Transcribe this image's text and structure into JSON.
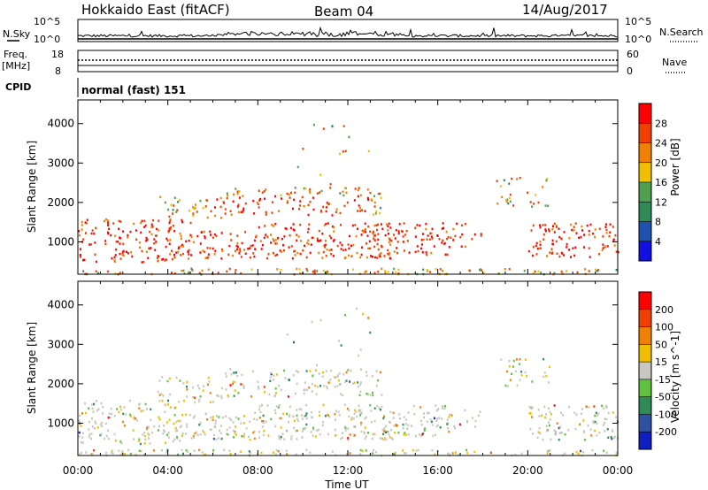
{
  "header": {
    "station": "Hokkaido East (fitACF)",
    "beam": "Beam 04",
    "date": "14/Aug/2017"
  },
  "status_panels": {
    "nsky_label": "N.Sky",
    "nsearch_label": "N.Search",
    "freq_label_line1": "Freq.",
    "freq_label_line2": "[MHz]",
    "nave_label": "Nave",
    "cpid_label": "CPID",
    "cpid_value": "normal (fast) 151",
    "nsky_ticks": [
      "10^5",
      "10^0"
    ],
    "nsearch_ticks": [
      "10^5",
      "10^0"
    ],
    "freq_ticks": [
      "18",
      "8"
    ],
    "nave_ticks": [
      "60",
      "0"
    ]
  },
  "chart_data": [
    {
      "type": "heatmap",
      "name": "power",
      "ylabel": "Slant Range [km]",
      "xlabel": "",
      "x_ticks": [
        "00:00",
        "04:00",
        "08:00",
        "12:00",
        "16:00",
        "20:00",
        "00:00"
      ],
      "y_ticks": [
        1000,
        2000,
        3000,
        4000
      ],
      "ylim": [
        180,
        4600
      ],
      "colorbar_label": "Power [dB]",
      "colorbar_ticks": [
        4,
        8,
        12,
        16,
        20,
        24,
        28
      ],
      "colorbar_colors": [
        "#1010e0",
        "#2050b0",
        "#2e8b57",
        "#50a050",
        "#f0c000",
        "#f08000",
        "#f04000",
        "#ff0000"
      ]
    },
    {
      "type": "heatmap",
      "name": "velocity",
      "ylabel": "Slant Range [km]",
      "xlabel": "Time UT",
      "x_ticks": [
        "00:00",
        "04:00",
        "08:00",
        "12:00",
        "16:00",
        "20:00",
        "00:00"
      ],
      "y_ticks": [
        1000,
        2000,
        3000,
        4000
      ],
      "ylim": [
        180,
        4600
      ],
      "colorbar_label": "Velocity [m s^-1]",
      "colorbar_ticks": [
        "200",
        "100",
        "50",
        "15",
        "-15",
        "-50",
        "-100",
        "-200"
      ],
      "colorbar_colors": [
        "#1020c0",
        "#3050a0",
        "#2e8b57",
        "#60c040",
        "#c8c8c0",
        "#f0c000",
        "#f08000",
        "#f04000",
        "#ff0000"
      ]
    }
  ]
}
